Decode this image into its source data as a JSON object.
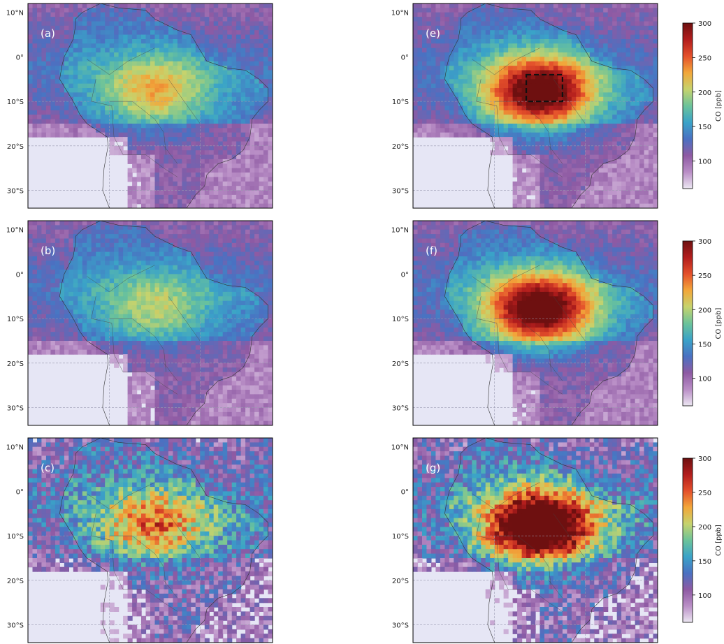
{
  "chart_data": {
    "type": "heatmap",
    "quantity_label": "CO [ppb]",
    "lat_ticks": [
      "10°N",
      "0°",
      "10°S",
      "20°S",
      "30°S"
    ],
    "lat_values": [
      10,
      0,
      -10,
      -20,
      -30
    ],
    "lon_gridlines": [
      -70,
      -50
    ],
    "extent": {
      "lon": [
        -88,
        -34
      ],
      "lat": [
        -34,
        12
      ]
    },
    "colorbar": {
      "range": [
        60,
        300
      ],
      "ticks": [
        100,
        150,
        200,
        250,
        300
      ],
      "colormap": [
        "#ece7f2",
        "#b98ec6",
        "#8e5aa3",
        "#4a71c2",
        "#3aa3c8",
        "#6cc39a",
        "#c6d36d",
        "#f2a73a",
        "#e4502b",
        "#b21d1d",
        "#6e1010"
      ]
    },
    "grid_on": true,
    "panels": [
      {
        "label": "(a)",
        "column": "left",
        "row": 0,
        "regime": "low"
      },
      {
        "label": "(e)",
        "column": "right",
        "row": 0,
        "regime": "high",
        "box": {
          "lon": [
            -63,
            -55
          ],
          "lat": [
            -10,
            -4
          ]
        }
      },
      {
        "label": "(b)",
        "column": "left",
        "row": 1,
        "regime": "lowest"
      },
      {
        "label": "(f)",
        "column": "right",
        "row": 1,
        "regime": "high"
      },
      {
        "label": "(c)",
        "column": "left",
        "row": 2,
        "regime": "mid",
        "noisy": true
      },
      {
        "label": "(g)",
        "column": "right",
        "row": 2,
        "regime": "highest",
        "noisy": true
      }
    ]
  }
}
